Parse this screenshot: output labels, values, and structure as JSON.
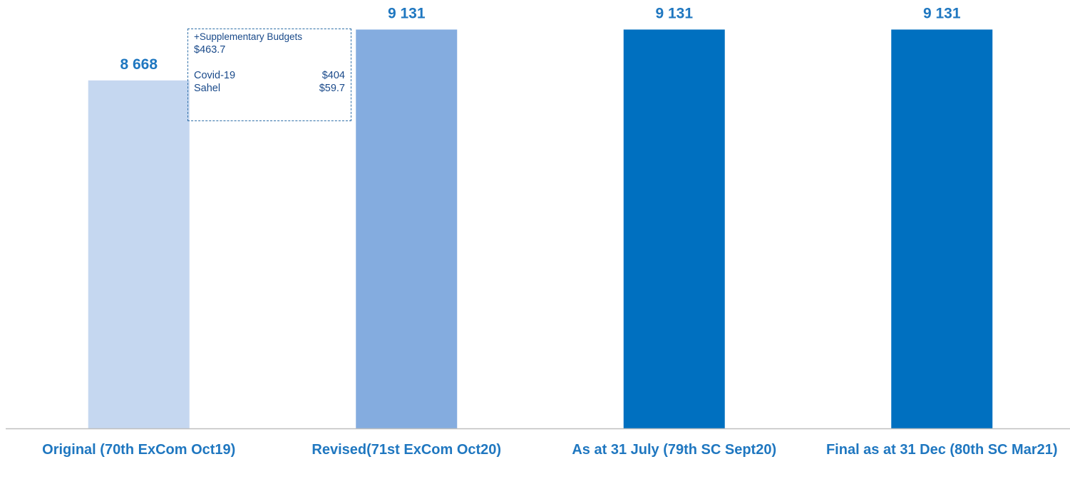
{
  "chart_data": {
    "type": "bar",
    "categories": [
      "Original (70th ExCom Oct19)",
      "Revised(71st ExCom Oct20)",
      "As at 31 July (79th SC Sept20)",
      "Final as at 31 Dec (80th SC Mar21)"
    ],
    "values": [
      8668,
      9131,
      9131,
      9131
    ],
    "value_labels": [
      "8 668",
      "9 131",
      "9 131",
      "9 131"
    ],
    "colors": [
      "#c5d7f0",
      "#84acdf",
      "#0070c0",
      "#0070c0"
    ],
    "ylim": [
      5500,
      9400
    ],
    "annotation": {
      "title": "+Supplementary Budgets",
      "total": "$463.7",
      "items": [
        {
          "label": "Covid-19",
          "value": "$404"
        },
        {
          "label": "Sahel",
          "value": "$59.7"
        }
      ]
    }
  }
}
